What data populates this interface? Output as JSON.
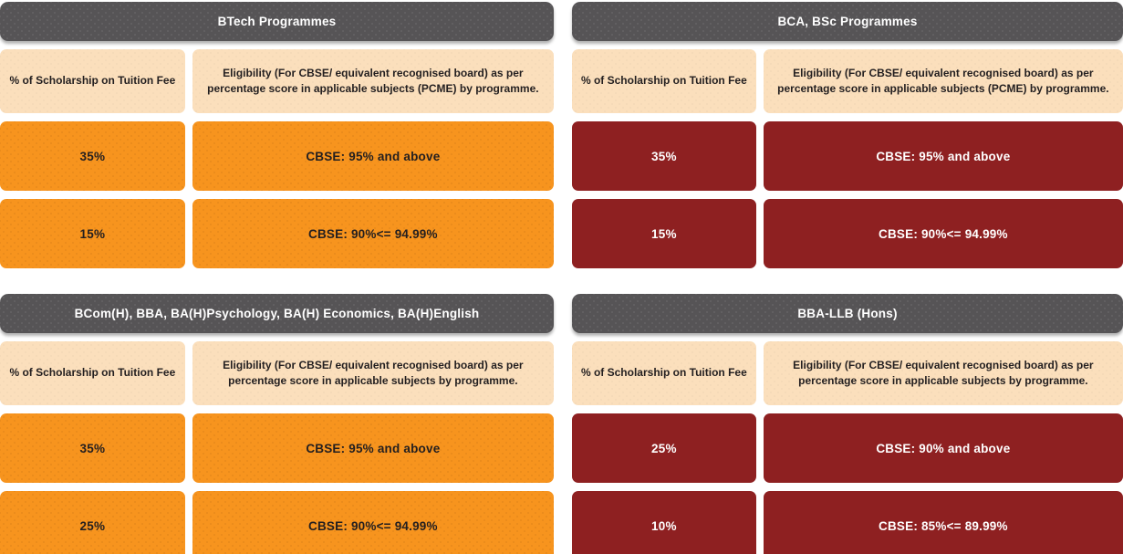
{
  "colors": {
    "header_bg": "#565456",
    "subheader_bg": "#FBDFBC",
    "orange_row": "#F7941E",
    "maroon_row": "#8E2021",
    "text_dark": "#231F20",
    "text_light": "#FFFFFF"
  },
  "tables": [
    {
      "title": "BTech Programmes",
      "theme": "orange",
      "col1_header": "% of Scholarship on Tuition Fee",
      "col2_header": "Eligibility (For CBSE/ equivalent recognised board) as per percentage score in applicable subjects (PCME) by programme.",
      "rows": [
        {
          "scholarship": "35%",
          "eligibility": "CBSE: 95% and above"
        },
        {
          "scholarship": "15%",
          "eligibility": "CBSE: 90%<= 94.99%"
        }
      ]
    },
    {
      "title": "BCA, BSc Programmes",
      "theme": "maroon",
      "col1_header": "% of Scholarship on Tuition Fee",
      "col2_header": "Eligibility (For CBSE/ equivalent recognised board) as per percentage score in applicable subjects (PCME) by programme.",
      "rows": [
        {
          "scholarship": "35%",
          "eligibility": "CBSE: 95% and above"
        },
        {
          "scholarship": "15%",
          "eligibility": "CBSE: 90%<= 94.99%"
        }
      ]
    },
    {
      "title": "BCom(H), BBA, BA(H)Psychology, BA(H) Economics, BA(H)English",
      "theme": "orange",
      "col1_header": "% of Scholarship on Tuition Fee",
      "col2_header": "Eligibility (For CBSE/ equivalent recognised board) as per percentage score in applicable subjects by programme.",
      "rows": [
        {
          "scholarship": "35%",
          "eligibility": "CBSE: 95% and above"
        },
        {
          "scholarship": "25%",
          "eligibility": "CBSE: 90%<= 94.99%"
        }
      ]
    },
    {
      "title": "BBA-LLB (Hons)",
      "theme": "maroon",
      "col1_header": "% of Scholarship on Tuition Fee",
      "col2_header": "Eligibility (For CBSE/ equivalent recognised board) as per percentage score in applicable subjects by programme.",
      "rows": [
        {
          "scholarship": "25%",
          "eligibility": "CBSE: 90% and above"
        },
        {
          "scholarship": "10%",
          "eligibility": "CBSE: 85%<= 89.99%"
        }
      ]
    }
  ]
}
